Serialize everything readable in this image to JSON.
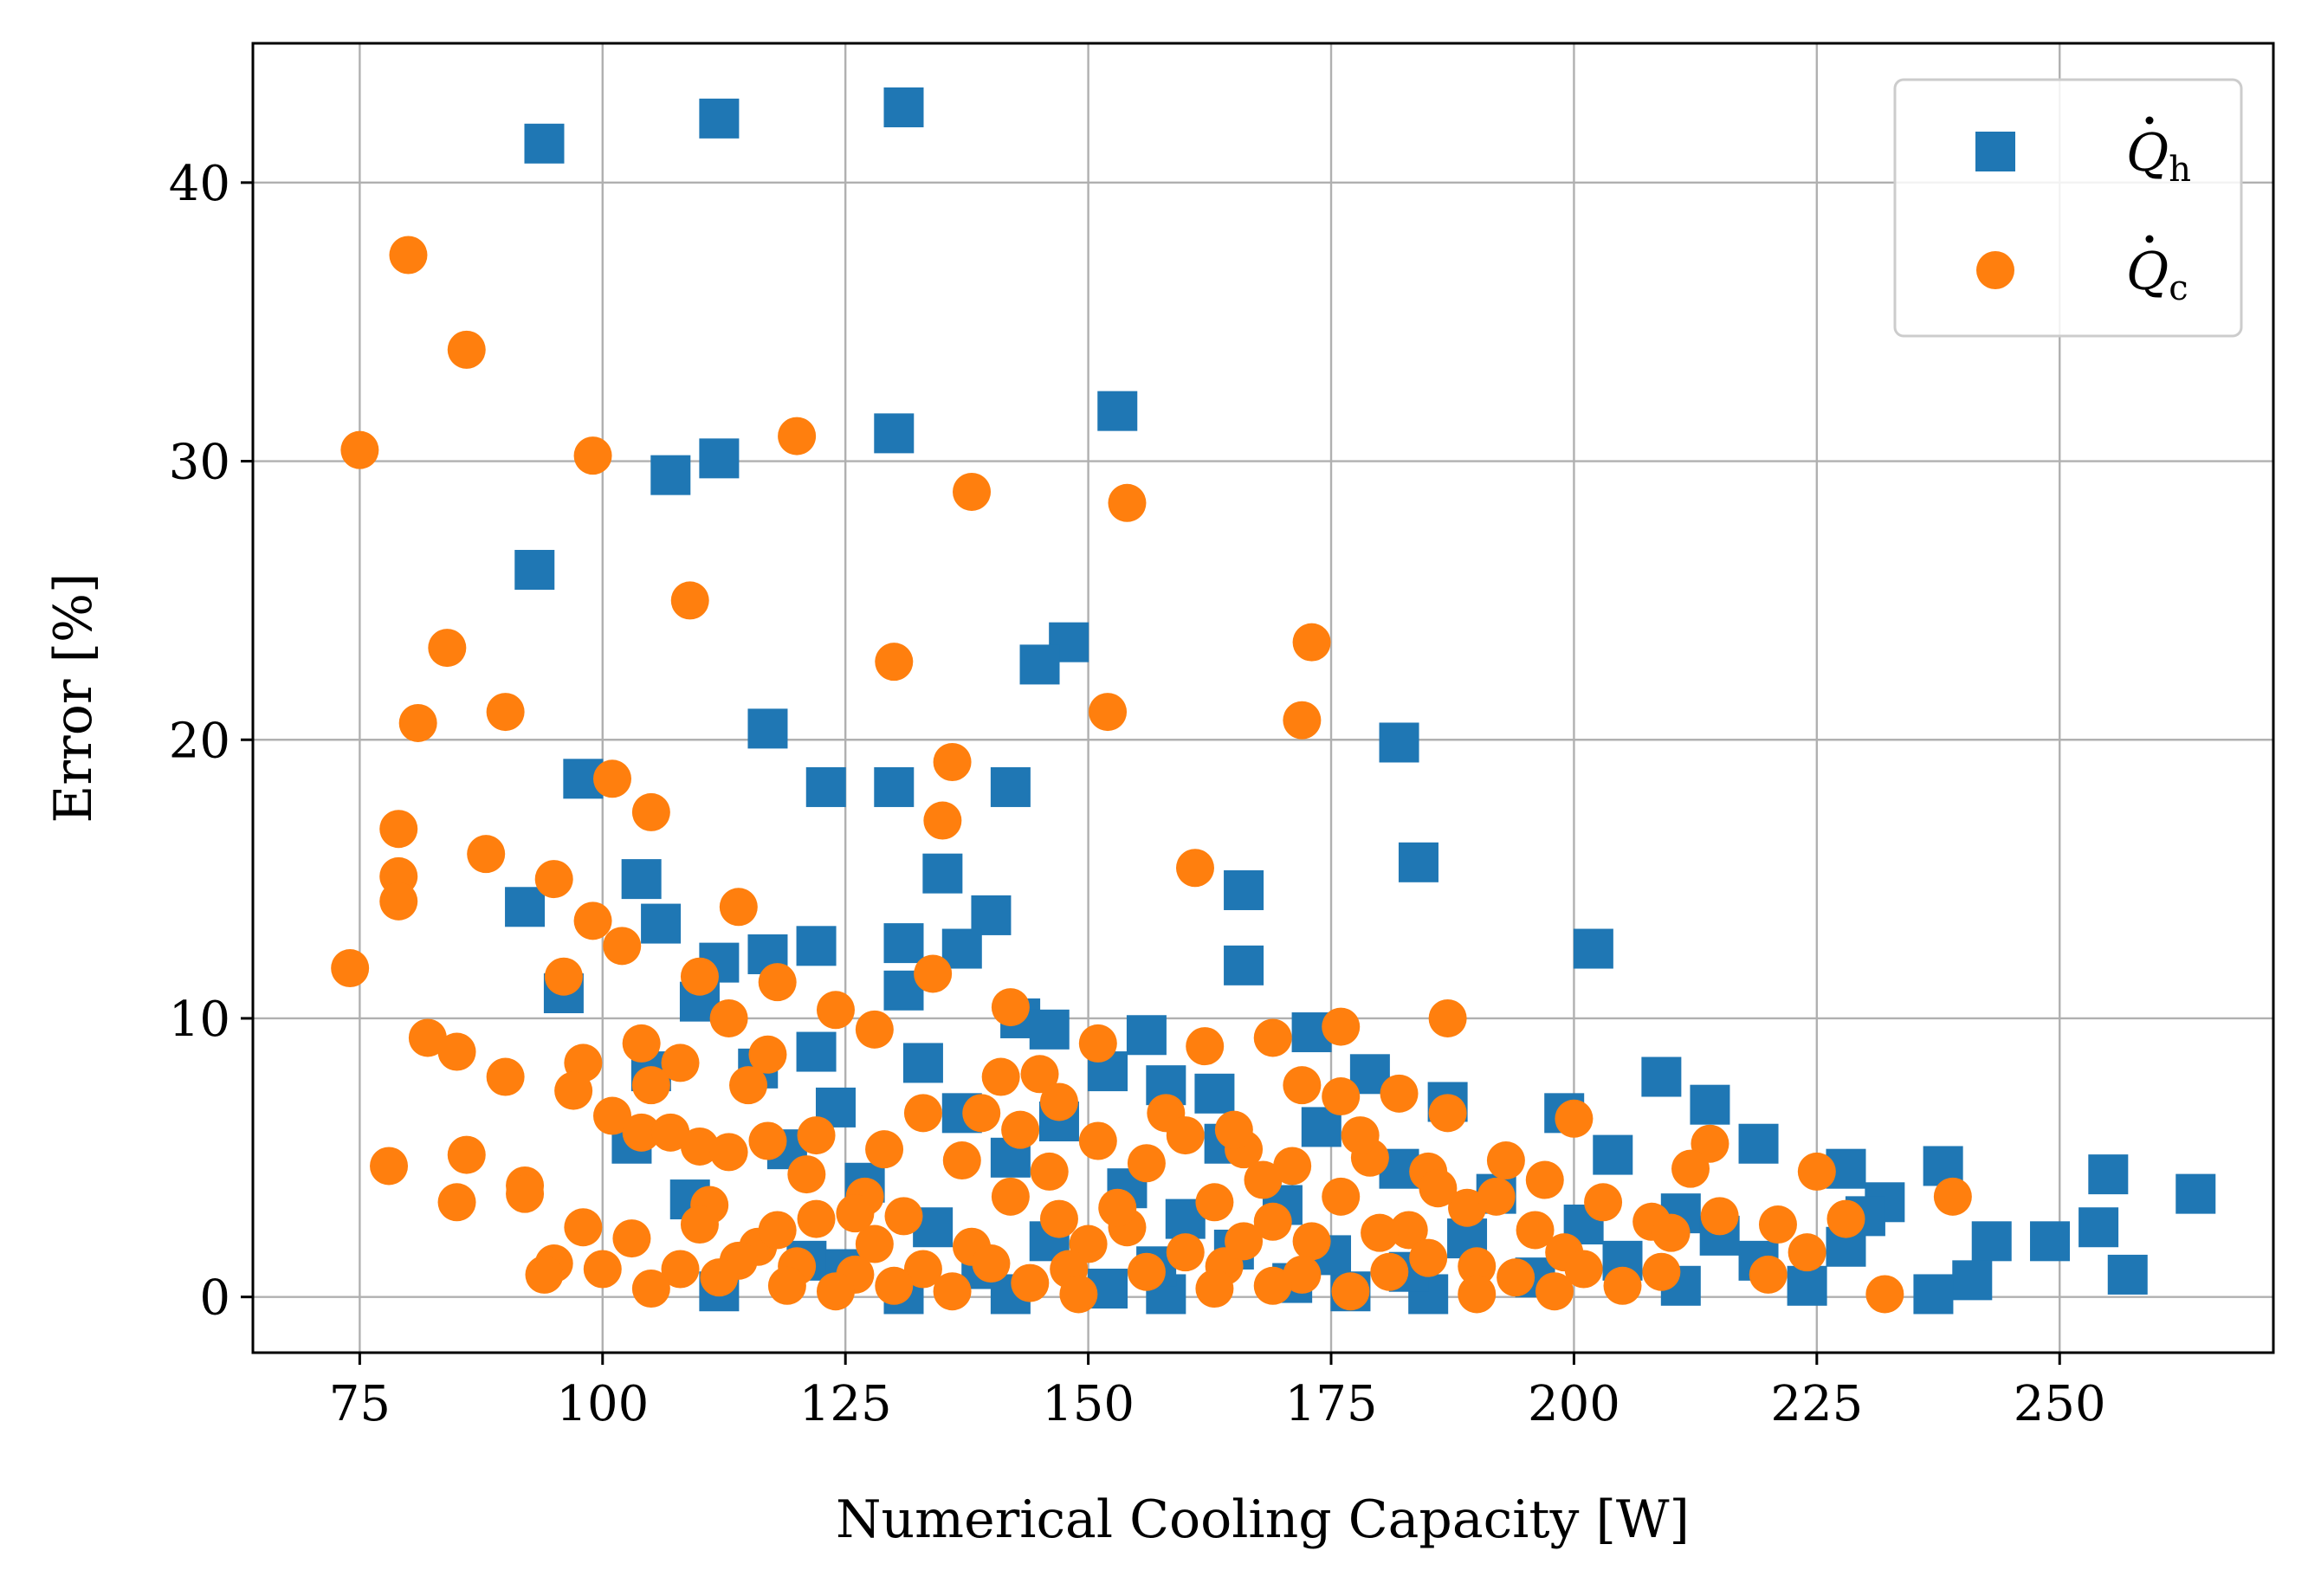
{
  "chart_data": {
    "type": "scatter",
    "xlabel": "Numerical Cooling Capacity [W]",
    "ylabel": "Error [%]",
    "xlim": [
      64,
      272
    ],
    "ylim": [
      -2,
      45
    ],
    "xticks": [
      75,
      100,
      125,
      150,
      175,
      200,
      225,
      250
    ],
    "yticks": [
      0,
      10,
      20,
      30,
      40
    ],
    "grid": true,
    "legend_position": "top-right",
    "series": [
      {
        "name": "Q̇h",
        "legend_symbol": "Q",
        "legend_subscript": "h",
        "marker": "square",
        "color": "#1f77b4",
        "points": [
          [
            94,
            41.4
          ],
          [
            112,
            42.3
          ],
          [
            131,
            42.7
          ],
          [
            130,
            31.0
          ],
          [
            153,
            31.8
          ],
          [
            112,
            30.1
          ],
          [
            107,
            29.5
          ],
          [
            93,
            26.1
          ],
          [
            148,
            23.5
          ],
          [
            145,
            22.7
          ],
          [
            117,
            20.4
          ],
          [
            182,
            19.9
          ],
          [
            98,
            18.6
          ],
          [
            123,
            18.3
          ],
          [
            130,
            18.3
          ],
          [
            142,
            18.3
          ],
          [
            184,
            15.6
          ],
          [
            135,
            15.2
          ],
          [
            104,
            15.0
          ],
          [
            92,
            14.0
          ],
          [
            166,
            14.6
          ],
          [
            140,
            13.7
          ],
          [
            106,
            13.4
          ],
          [
            137,
            12.5
          ],
          [
            131,
            12.7
          ],
          [
            122,
            12.6
          ],
          [
            117,
            12.3
          ],
          [
            112,
            12.0
          ],
          [
            202,
            12.5
          ],
          [
            166,
            11.9
          ],
          [
            96,
            10.9
          ],
          [
            110,
            10.6
          ],
          [
            131,
            11.0
          ],
          [
            143,
            10.0
          ],
          [
            146,
            9.6
          ],
          [
            156,
            9.4
          ],
          [
            173,
            9.5
          ],
          [
            122,
            8.8
          ],
          [
            116,
            8.2
          ],
          [
            105,
            8.1
          ],
          [
            133,
            8.4
          ],
          [
            152,
            8.1
          ],
          [
            179,
            8.0
          ],
          [
            209,
            7.9
          ],
          [
            158,
            7.6
          ],
          [
            163,
            7.3
          ],
          [
            187,
            7.0
          ],
          [
            214,
            6.9
          ],
          [
            124,
            6.8
          ],
          [
            137,
            6.6
          ],
          [
            199,
            6.6
          ],
          [
            147,
            6.3
          ],
          [
            174,
            6.1
          ],
          [
            103,
            5.5
          ],
          [
            119,
            5.3
          ],
          [
            142,
            5.0
          ],
          [
            164,
            5.5
          ],
          [
            182,
            4.6
          ],
          [
            204,
            5.1
          ],
          [
            219,
            5.5
          ],
          [
            228,
            4.6
          ],
          [
            238,
            4.7
          ],
          [
            255,
            4.4
          ],
          [
            264,
            3.7
          ],
          [
            109,
            3.5
          ],
          [
            127,
            4.1
          ],
          [
            154,
            3.9
          ],
          [
            170,
            3.3
          ],
          [
            192,
            3.7
          ],
          [
            211,
            3.0
          ],
          [
            232,
            3.4
          ],
          [
            249,
            2.0
          ],
          [
            254,
            2.5
          ],
          [
            257,
            0.8
          ],
          [
            243,
            2.0
          ],
          [
            241,
            0.6
          ],
          [
            237,
            0.1
          ],
          [
            224,
            0.4
          ],
          [
            112,
            0.2
          ],
          [
            121,
            1.3
          ],
          [
            131,
            0.1
          ],
          [
            139,
            1.0
          ],
          [
            142,
            0.1
          ],
          [
            152,
            0.3
          ],
          [
            158,
            0.1
          ],
          [
            165,
            1.7
          ],
          [
            177,
            0.2
          ],
          [
            185,
            0.1
          ],
          [
            196,
            0.7
          ],
          [
            211,
            0.4
          ],
          [
            219,
            1.3
          ],
          [
            134,
            2.5
          ],
          [
            146,
            2.0
          ],
          [
            160,
            2.8
          ],
          [
            175,
            1.5
          ],
          [
            189,
            2.1
          ],
          [
            201,
            2.6
          ],
          [
            215,
            2.2
          ],
          [
            228,
            1.8
          ],
          [
            125,
            1.0
          ],
          [
            157,
            1.1
          ],
          [
            171,
            0.5
          ],
          [
            183,
            0.9
          ],
          [
            205,
            1.3
          ],
          [
            230,
            2.9
          ]
        ]
      },
      {
        "name": "Q̇c",
        "legend_symbol": "Q",
        "legend_subscript": "c",
        "marker": "circle",
        "color": "#ff7f0e",
        "points": [
          [
            80,
            37.4
          ],
          [
            86,
            34.0
          ],
          [
            75,
            30.4
          ],
          [
            99,
            30.2
          ],
          [
            120,
            30.9
          ],
          [
            138,
            28.9
          ],
          [
            154,
            28.5
          ],
          [
            109,
            25.0
          ],
          [
            84,
            23.3
          ],
          [
            130,
            22.8
          ],
          [
            173,
            23.5
          ],
          [
            81,
            20.6
          ],
          [
            90,
            21.0
          ],
          [
            152,
            21.0
          ],
          [
            172,
            20.7
          ],
          [
            136,
            19.2
          ],
          [
            101,
            18.6
          ],
          [
            79,
            16.8
          ],
          [
            105,
            17.4
          ],
          [
            135,
            17.1
          ],
          [
            79,
            15.1
          ],
          [
            88,
            15.9
          ],
          [
            95,
            15.0
          ],
          [
            161,
            15.4
          ],
          [
            79,
            14.2
          ],
          [
            99,
            13.5
          ],
          [
            114,
            14.0
          ],
          [
            102,
            12.6
          ],
          [
            74,
            11.8
          ],
          [
            96,
            11.5
          ],
          [
            110,
            11.5
          ],
          [
            134,
            11.6
          ],
          [
            118,
            11.3
          ],
          [
            124,
            10.3
          ],
          [
            142,
            10.4
          ],
          [
            113,
            10.0
          ],
          [
            187,
            10.0
          ],
          [
            128,
            9.6
          ],
          [
            176,
            9.7
          ],
          [
            82,
            9.3
          ],
          [
            85,
            8.8
          ],
          [
            104,
            9.1
          ],
          [
            151,
            9.1
          ],
          [
            162,
            9.0
          ],
          [
            169,
            9.3
          ],
          [
            98,
            8.4
          ],
          [
            108,
            8.4
          ],
          [
            117,
            8.7
          ],
          [
            90,
            7.9
          ],
          [
            115,
            7.6
          ],
          [
            141,
            7.9
          ],
          [
            145,
            8.0
          ],
          [
            172,
            7.6
          ],
          [
            97,
            7.4
          ],
          [
            105,
            7.6
          ],
          [
            182,
            7.3
          ],
          [
            176,
            7.2
          ],
          [
            133,
            6.6
          ],
          [
            158,
            6.6
          ],
          [
            187,
            6.6
          ],
          [
            200,
            6.4
          ],
          [
            101,
            6.5
          ],
          [
            104,
            5.9
          ],
          [
            107,
            5.9
          ],
          [
            110,
            5.4
          ],
          [
            113,
            5.2
          ],
          [
            117,
            5.6
          ],
          [
            122,
            5.8
          ],
          [
            129,
            5.3
          ],
          [
            151,
            5.6
          ],
          [
            166,
            5.3
          ],
          [
            179,
            5.0
          ],
          [
            193,
            4.9
          ],
          [
            214,
            5.5
          ],
          [
            86,
            5.1
          ],
          [
            78,
            4.7
          ],
          [
            121,
            4.4
          ],
          [
            137,
            4.9
          ],
          [
            156,
            4.8
          ],
          [
            168,
            4.2
          ],
          [
            185,
            4.5
          ],
          [
            197,
            4.2
          ],
          [
            212,
            4.6
          ],
          [
            225,
            4.5
          ],
          [
            92,
            4.0
          ],
          [
            92,
            3.7
          ],
          [
            85,
            3.4
          ],
          [
            111,
            3.3
          ],
          [
            127,
            3.6
          ],
          [
            142,
            3.6
          ],
          [
            163,
            3.4
          ],
          [
            176,
            3.6
          ],
          [
            189,
            3.2
          ],
          [
            203,
            3.4
          ],
          [
            215,
            2.9
          ],
          [
            228,
            2.8
          ],
          [
            239,
            3.6
          ],
          [
            110,
            2.6
          ],
          [
            122,
            2.8
          ],
          [
            131,
            2.9
          ],
          [
            147,
            2.8
          ],
          [
            154,
            2.5
          ],
          [
            169,
            2.7
          ],
          [
            183,
            2.4
          ],
          [
            196,
            2.4
          ],
          [
            208,
            2.7
          ],
          [
            221,
            2.6
          ],
          [
            98,
            2.5
          ],
          [
            103,
            2.1
          ],
          [
            116,
            1.8
          ],
          [
            128,
            1.9
          ],
          [
            138,
            1.8
          ],
          [
            150,
            1.9
          ],
          [
            160,
            1.6
          ],
          [
            173,
            2.0
          ],
          [
            185,
            1.4
          ],
          [
            199,
            1.6
          ],
          [
            224,
            1.6
          ],
          [
            95,
            1.2
          ],
          [
            100,
            1.0
          ],
          [
            108,
            1.0
          ],
          [
            114,
            1.3
          ],
          [
            120,
            1.1
          ],
          [
            126,
            0.8
          ],
          [
            133,
            1.0
          ],
          [
            140,
            1.2
          ],
          [
            148,
            1.0
          ],
          [
            156,
            0.9
          ],
          [
            164,
            1.1
          ],
          [
            172,
            0.8
          ],
          [
            181,
            0.9
          ],
          [
            190,
            1.1
          ],
          [
            201,
            1.0
          ],
          [
            209,
            0.9
          ],
          [
            220,
            0.8
          ],
          [
            94,
            0.8
          ],
          [
            105,
            0.3
          ],
          [
            112,
            0.7
          ],
          [
            119,
            0.4
          ],
          [
            124,
            0.2
          ],
          [
            130,
            0.4
          ],
          [
            136,
            0.2
          ],
          [
            144,
            0.5
          ],
          [
            149,
            0.1
          ],
          [
            163,
            0.3
          ],
          [
            169,
            0.4
          ],
          [
            177,
            0.2
          ],
          [
            190,
            0.1
          ],
          [
            198,
            0.2
          ],
          [
            205,
            0.4
          ],
          [
            232,
            0.1
          ],
          [
            143,
            6.0
          ],
          [
            147,
            7.0
          ],
          [
            165,
            6.0
          ],
          [
            160,
            5.8
          ],
          [
            178,
            5.8
          ],
          [
            139,
            6.6
          ],
          [
            126,
            3.0
          ],
          [
            118,
            2.4
          ],
          [
            153,
            3.2
          ],
          [
            180,
            2.3
          ],
          [
            192,
            3.6
          ],
          [
            210,
            2.3
          ],
          [
            186,
            3.9
          ],
          [
            194,
            0.7
          ],
          [
            146,
            4.5
          ],
          [
            166,
            2.0
          ],
          [
            171,
            4.7
          ]
        ]
      }
    ]
  }
}
